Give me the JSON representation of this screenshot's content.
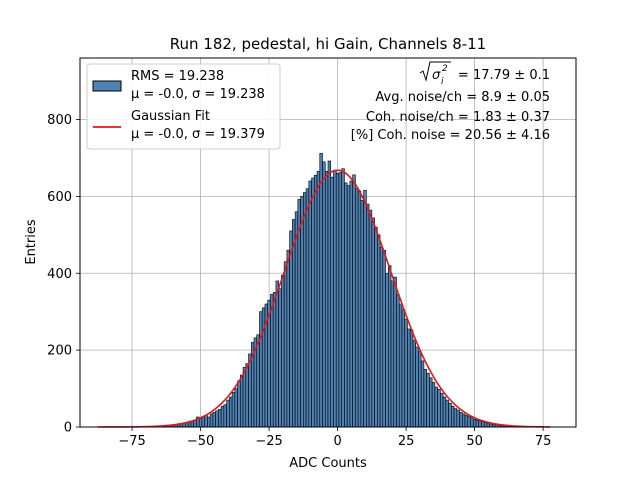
{
  "chart_data": {
    "type": "bar",
    "title": "Run 182, pedestal, hi Gain, Channels 8-11",
    "xlabel": "ADC Counts",
    "ylabel": "Entries",
    "xlim": [
      -94,
      87
    ],
    "ylim": [
      0,
      960
    ],
    "xticks": [
      -75,
      -50,
      -25,
      0,
      25,
      50,
      75
    ],
    "yticks": [
      0,
      200,
      400,
      600,
      800
    ],
    "grid": true,
    "histogram": {
      "name": "RMS = 19.238",
      "params": "μ = -0.0, σ = 19.238",
      "color": "#4f81b3",
      "edge_color": "#000000",
      "bin_width": 1,
      "bin_centers": [
        -66,
        -65,
        -64,
        -63,
        -62,
        -61,
        -60,
        -59,
        -58,
        -57,
        -56,
        -55,
        -54,
        -53,
        -52,
        -51,
        -50,
        -49,
        -48,
        -47,
        -46,
        -45,
        -44,
        -43,
        -42,
        -41,
        -40,
        -39,
        -38,
        -37,
        -36,
        -35,
        -34,
        -33,
        -32,
        -31,
        -30,
        -29,
        -28,
        -27,
        -26,
        -25,
        -24,
        -23,
        -22,
        -21,
        -20,
        -19,
        -18,
        -17,
        -16,
        -15,
        -14,
        -13,
        -12,
        -11,
        -10,
        -9,
        -8,
        -7,
        -6,
        -5,
        -4,
        -3,
        -2,
        -1,
        0,
        1,
        2,
        3,
        4,
        5,
        6,
        7,
        8,
        9,
        10,
        11,
        12,
        13,
        14,
        15,
        16,
        17,
        18,
        19,
        20,
        21,
        22,
        23,
        24,
        25,
        26,
        27,
        28,
        29,
        30,
        31,
        32,
        33,
        34,
        35,
        36,
        37,
        38,
        39,
        40,
        41,
        42,
        43,
        44,
        45,
        46,
        47,
        48,
        49,
        50,
        51,
        52,
        53,
        54,
        55,
        56,
        57,
        58,
        59,
        60,
        61,
        62,
        63,
        64,
        65,
        66
      ],
      "values": [
        2,
        2,
        3,
        3,
        4,
        5,
        6,
        6,
        8,
        9,
        10,
        12,
        14,
        16,
        18,
        26,
        22,
        28,
        30,
        26,
        34,
        38,
        42,
        46,
        54,
        58,
        70,
        78,
        90,
        100,
        120,
        135,
        155,
        165,
        190,
        220,
        232,
        240,
        300,
        310,
        320,
        330,
        345,
        350,
        380,
        360,
        395,
        430,
        460,
        510,
        540,
        560,
        592,
        600,
        610,
        620,
        640,
        648,
        655,
        665,
        712,
        690,
        665,
        692,
        650,
        668,
        660,
        662,
        672,
        635,
        628,
        640,
        656,
        620,
        614,
        590,
        616,
        580,
        564,
        544,
        520,
        500,
        468,
        460,
        400,
        420,
        380,
        390,
        345,
        320,
        305,
        280,
        255,
        252,
        226,
        208,
        196,
        172,
        150,
        140,
        128,
        116,
        104,
        98,
        88,
        78,
        70,
        62,
        54,
        48,
        44,
        38,
        34,
        30,
        28,
        24,
        20,
        18,
        16,
        14,
        12,
        10,
        8,
        7,
        6,
        5,
        4,
        3,
        3,
        2,
        2,
        2,
        1
      ]
    },
    "fit": {
      "name": "Gaussian Fit",
      "params": "μ = -0.0, σ = 19.379",
      "color": "#e3171b",
      "mu": 0.0,
      "sigma": 19.379,
      "amplitude": 668,
      "x_range": [
        -87.5,
        77.5
      ]
    },
    "annotations": {
      "line1_value": " = 17.79 ± 0.1",
      "line2": "Avg. noise/ch = 8.9 ± 0.05",
      "line3": "Coh. noise/ch = 1.83 ± 0.37",
      "line4": "[%] Coh. noise = 20.56 ± 4.16"
    }
  }
}
